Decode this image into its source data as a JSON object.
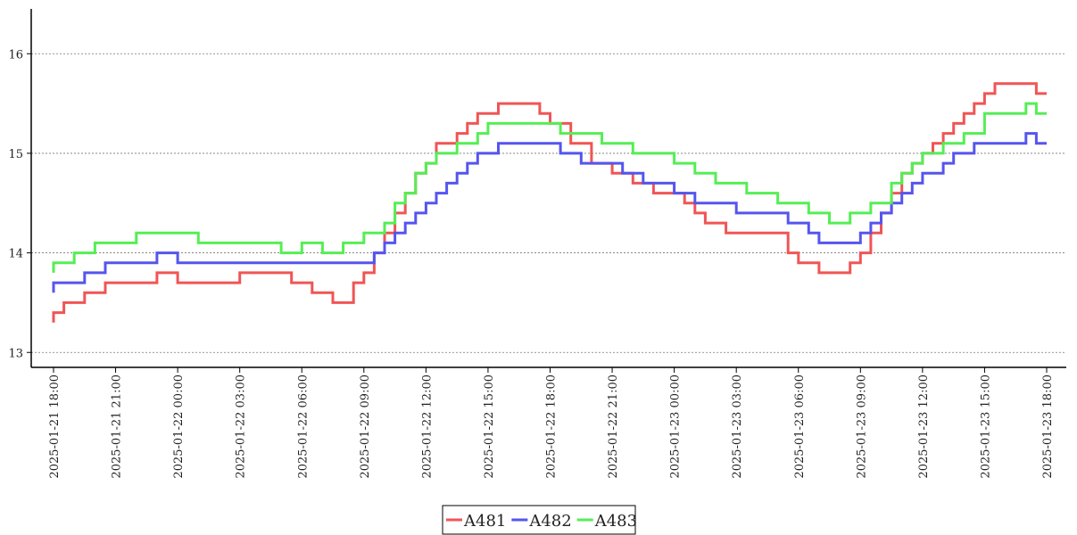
{
  "chart_data": {
    "type": "line",
    "title": "",
    "xlabel": "",
    "ylabel": "",
    "x_ticks": [
      "2025-01-21 18:00",
      "2025-01-21 21:00",
      "2025-01-22 00:00",
      "2025-01-22 03:00",
      "2025-01-22 06:00",
      "2025-01-22 09:00",
      "2025-01-22 12:00",
      "2025-01-22 15:00",
      "2025-01-22 18:00",
      "2025-01-22 21:00",
      "2025-01-23 00:00",
      "2025-01-23 03:00",
      "2025-01-23 06:00",
      "2025-01-23 09:00",
      "2025-01-23 12:00",
      "2025-01-23 15:00",
      "2025-01-23 18:00"
    ],
    "xlim": [
      "2025-01-21 18:00",
      "2025-01-23 18:00"
    ],
    "y_ticks": [
      13,
      14,
      15,
      16
    ],
    "ylim": [
      12.85,
      16.45
    ],
    "grid": "horizontal-dotted",
    "legend_position": "bottom-center",
    "series": [
      {
        "name": "A481",
        "color": "#f05555",
        "points": [
          [
            "2025-01-21 18:00",
            13.3
          ],
          [
            "2025-01-21 18:00",
            13.4
          ],
          [
            "2025-01-21 18:30",
            13.5
          ],
          [
            "2025-01-21 19:30",
            13.6
          ],
          [
            "2025-01-21 20:30",
            13.7
          ],
          [
            "2025-01-21 23:00",
            13.8
          ],
          [
            "2025-01-22 00:00",
            13.7
          ],
          [
            "2025-01-22 03:00",
            13.8
          ],
          [
            "2025-01-22 05:30",
            13.7
          ],
          [
            "2025-01-22 06:30",
            13.6
          ],
          [
            "2025-01-22 07:30",
            13.5
          ],
          [
            "2025-01-22 08:30",
            13.7
          ],
          [
            "2025-01-22 09:00",
            13.8
          ],
          [
            "2025-01-22 09:30",
            14.0
          ],
          [
            "2025-01-22 10:00",
            14.2
          ],
          [
            "2025-01-22 10:30",
            14.4
          ],
          [
            "2025-01-22 11:00",
            14.6
          ],
          [
            "2025-01-22 11:30",
            14.8
          ],
          [
            "2025-01-22 12:00",
            14.9
          ],
          [
            "2025-01-22 12:30",
            15.1
          ],
          [
            "2025-01-22 13:30",
            15.2
          ],
          [
            "2025-01-22 14:00",
            15.3
          ],
          [
            "2025-01-22 14:30",
            15.4
          ],
          [
            "2025-01-22 15:30",
            15.5
          ],
          [
            "2025-01-22 17:30",
            15.4
          ],
          [
            "2025-01-22 18:00",
            15.3
          ],
          [
            "2025-01-22 19:00",
            15.1
          ],
          [
            "2025-01-22 20:00",
            14.9
          ],
          [
            "2025-01-22 21:00",
            14.8
          ],
          [
            "2025-01-22 22:00",
            14.7
          ],
          [
            "2025-01-22 23:00",
            14.6
          ],
          [
            "2025-01-23 00:30",
            14.5
          ],
          [
            "2025-01-23 01:00",
            14.4
          ],
          [
            "2025-01-23 01:30",
            14.3
          ],
          [
            "2025-01-23 02:30",
            14.2
          ],
          [
            "2025-01-23 05:30",
            14.0
          ],
          [
            "2025-01-23 06:00",
            13.9
          ],
          [
            "2025-01-23 07:00",
            13.8
          ],
          [
            "2025-01-23 08:30",
            13.9
          ],
          [
            "2025-01-23 09:00",
            14.0
          ],
          [
            "2025-01-23 09:30",
            14.2
          ],
          [
            "2025-01-23 10:00",
            14.4
          ],
          [
            "2025-01-23 10:30",
            14.6
          ],
          [
            "2025-01-23 11:00",
            14.8
          ],
          [
            "2025-01-23 11:30",
            14.9
          ],
          [
            "2025-01-23 12:00",
            15.0
          ],
          [
            "2025-01-23 12:30",
            15.1
          ],
          [
            "2025-01-23 13:00",
            15.2
          ],
          [
            "2025-01-23 13:30",
            15.3
          ],
          [
            "2025-01-23 14:00",
            15.4
          ],
          [
            "2025-01-23 14:30",
            15.5
          ],
          [
            "2025-01-23 15:00",
            15.6
          ],
          [
            "2025-01-23 15:30",
            15.7
          ],
          [
            "2025-01-23 17:30",
            15.6
          ],
          [
            "2025-01-23 18:00",
            15.6
          ]
        ]
      },
      {
        "name": "A482",
        "color": "#5555ee",
        "points": [
          [
            "2025-01-21 18:00",
            13.6
          ],
          [
            "2025-01-21 18:00",
            13.7
          ],
          [
            "2025-01-21 19:30",
            13.8
          ],
          [
            "2025-01-21 20:30",
            13.9
          ],
          [
            "2025-01-21 23:00",
            14.0
          ],
          [
            "2025-01-22 00:00",
            13.9
          ],
          [
            "2025-01-22 03:00",
            13.9
          ],
          [
            "2025-01-22 06:00",
            13.9
          ],
          [
            "2025-01-22 09:00",
            13.9
          ],
          [
            "2025-01-22 09:30",
            14.0
          ],
          [
            "2025-01-22 10:00",
            14.1
          ],
          [
            "2025-01-22 10:30",
            14.2
          ],
          [
            "2025-01-22 11:00",
            14.3
          ],
          [
            "2025-01-22 11:30",
            14.4
          ],
          [
            "2025-01-22 12:00",
            14.5
          ],
          [
            "2025-01-22 12:30",
            14.6
          ],
          [
            "2025-01-22 13:00",
            14.7
          ],
          [
            "2025-01-22 13:30",
            14.8
          ],
          [
            "2025-01-22 14:00",
            14.9
          ],
          [
            "2025-01-22 14:30",
            15.0
          ],
          [
            "2025-01-22 15:30",
            15.1
          ],
          [
            "2025-01-22 18:00",
            15.1
          ],
          [
            "2025-01-22 18:30",
            15.0
          ],
          [
            "2025-01-22 19:30",
            14.9
          ],
          [
            "2025-01-22 21:30",
            14.8
          ],
          [
            "2025-01-22 22:30",
            14.7
          ],
          [
            "2025-01-23 00:00",
            14.6
          ],
          [
            "2025-01-23 01:00",
            14.5
          ],
          [
            "2025-01-23 02:30",
            14.5
          ],
          [
            "2025-01-23 03:00",
            14.4
          ],
          [
            "2025-01-23 05:30",
            14.3
          ],
          [
            "2025-01-23 06:30",
            14.2
          ],
          [
            "2025-01-23 07:00",
            14.1
          ],
          [
            "2025-01-23 08:30",
            14.1
          ],
          [
            "2025-01-23 09:00",
            14.2
          ],
          [
            "2025-01-23 09:30",
            14.3
          ],
          [
            "2025-01-23 10:00",
            14.4
          ],
          [
            "2025-01-23 10:30",
            14.5
          ],
          [
            "2025-01-23 11:00",
            14.6
          ],
          [
            "2025-01-23 11:30",
            14.7
          ],
          [
            "2025-01-23 12:00",
            14.8
          ],
          [
            "2025-01-23 13:00",
            14.9
          ],
          [
            "2025-01-23 13:30",
            15.0
          ],
          [
            "2025-01-23 14:30",
            15.1
          ],
          [
            "2025-01-23 17:00",
            15.2
          ],
          [
            "2025-01-23 17:30",
            15.1
          ],
          [
            "2025-01-23 18:00",
            15.1
          ]
        ]
      },
      {
        "name": "A483",
        "color": "#55ee55",
        "points": [
          [
            "2025-01-21 18:00",
            13.8
          ],
          [
            "2025-01-21 18:00",
            13.9
          ],
          [
            "2025-01-21 19:00",
            14.0
          ],
          [
            "2025-01-21 20:00",
            14.1
          ],
          [
            "2025-01-21 22:00",
            14.2
          ],
          [
            "2025-01-22 01:00",
            14.1
          ],
          [
            "2025-01-22 03:00",
            14.1
          ],
          [
            "2025-01-22 05:00",
            14.0
          ],
          [
            "2025-01-22 06:00",
            14.1
          ],
          [
            "2025-01-22 07:00",
            14.0
          ],
          [
            "2025-01-22 08:00",
            14.1
          ],
          [
            "2025-01-22 09:00",
            14.2
          ],
          [
            "2025-01-22 10:00",
            14.3
          ],
          [
            "2025-01-22 10:30",
            14.5
          ],
          [
            "2025-01-22 11:00",
            14.6
          ],
          [
            "2025-01-22 11:30",
            14.8
          ],
          [
            "2025-01-22 12:00",
            14.9
          ],
          [
            "2025-01-22 12:30",
            15.0
          ],
          [
            "2025-01-22 13:30",
            15.1
          ],
          [
            "2025-01-22 14:30",
            15.2
          ],
          [
            "2025-01-22 15:00",
            15.3
          ],
          [
            "2025-01-22 18:00",
            15.3
          ],
          [
            "2025-01-22 18:30",
            15.2
          ],
          [
            "2025-01-22 20:30",
            15.1
          ],
          [
            "2025-01-22 22:00",
            15.0
          ],
          [
            "2025-01-23 00:00",
            14.9
          ],
          [
            "2025-01-23 01:00",
            14.8
          ],
          [
            "2025-01-23 02:00",
            14.7
          ],
          [
            "2025-01-23 03:30",
            14.6
          ],
          [
            "2025-01-23 05:00",
            14.5
          ],
          [
            "2025-01-23 06:30",
            14.4
          ],
          [
            "2025-01-23 07:30",
            14.3
          ],
          [
            "2025-01-23 08:30",
            14.4
          ],
          [
            "2025-01-23 09:30",
            14.5
          ],
          [
            "2025-01-23 10:30",
            14.7
          ],
          [
            "2025-01-23 11:00",
            14.8
          ],
          [
            "2025-01-23 11:30",
            14.9
          ],
          [
            "2025-01-23 12:00",
            15.0
          ],
          [
            "2025-01-23 13:00",
            15.1
          ],
          [
            "2025-01-23 14:00",
            15.2
          ],
          [
            "2025-01-23 15:00",
            15.4
          ],
          [
            "2025-01-23 17:00",
            15.5
          ],
          [
            "2025-01-23 17:30",
            15.4
          ],
          [
            "2025-01-23 18:00",
            15.4
          ]
        ]
      }
    ]
  }
}
